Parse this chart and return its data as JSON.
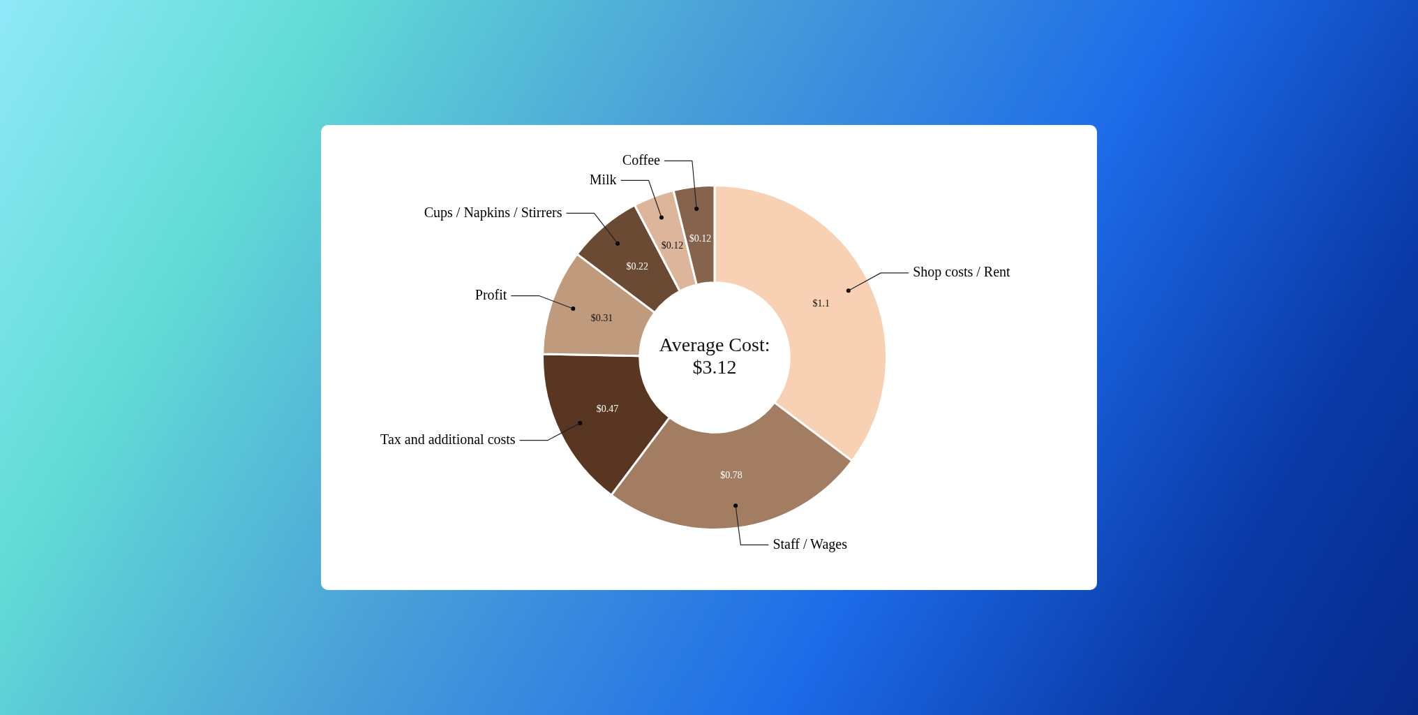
{
  "chart_data": {
    "type": "donut",
    "categories": [
      "Shop costs / Rent",
      "Staff / Wages",
      "Tax and additional costs",
      "Profit",
      "Cups / Napkins / Stirrers",
      "Milk",
      "Coffee"
    ],
    "values": [
      1.1,
      0.78,
      0.47,
      0.31,
      0.22,
      0.12,
      0.12
    ],
    "colors": [
      "#f8d0b4",
      "#a27d62",
      "#583621",
      "#c09a7c",
      "#6b4a33",
      "#ddb59b",
      "#85634c"
    ],
    "value_labels": [
      "$1.1",
      "$0.78",
      "$0.47",
      "$0.31",
      "$0.22",
      "$0.12",
      "$0.12"
    ],
    "annotations": [
      "Average Cost:",
      "$3.12"
    ]
  }
}
